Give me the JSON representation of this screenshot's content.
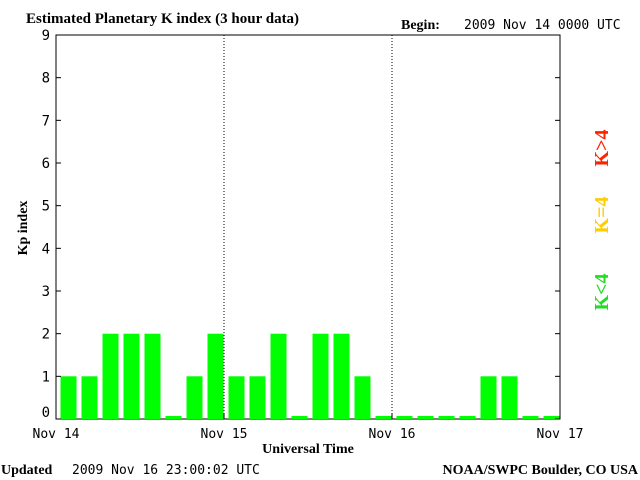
{
  "chart_data": {
    "type": "bar",
    "title": "Estimated Planetary K index (3 hour data)",
    "begin_label": "Begin:",
    "begin_value": "2009 Nov 14 0000 UTC",
    "ylabel": "Kp index",
    "xlabel": "Universal Time",
    "ylim": [
      0,
      9
    ],
    "yticks": [
      "0",
      "1",
      "2",
      "3",
      "4",
      "5",
      "6",
      "7",
      "8",
      "9"
    ],
    "xticks": [
      "Nov 14",
      "Nov 15",
      "Nov 16",
      "Nov 17"
    ],
    "values": [
      1,
      1,
      2,
      2,
      2,
      0,
      1,
      2,
      1,
      1,
      2,
      0,
      2,
      2,
      1,
      0,
      0,
      0,
      0,
      0,
      1,
      1,
      0,
      0
    ],
    "bar_color": "#00ff00",
    "legend": [
      {
        "text": "K<4",
        "color": "#22dd22"
      },
      {
        "text": "K=4",
        "color": "#ffcc00"
      },
      {
        "text": "K>4",
        "color": "#ff2200"
      }
    ]
  },
  "footer": {
    "updated_label": "Updated",
    "updated_value": "2009 Nov 16 23:00:02 UTC",
    "source": "NOAA/SWPC Boulder, CO USA"
  }
}
